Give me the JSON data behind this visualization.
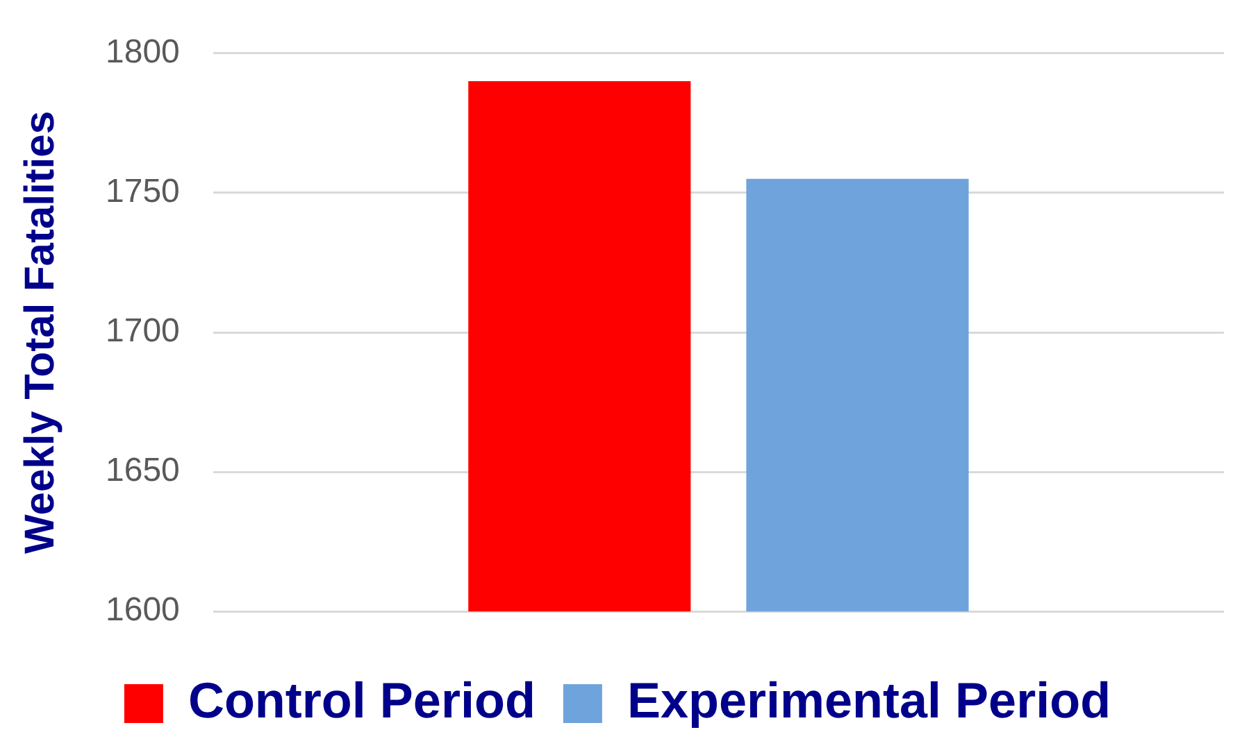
{
  "chart_data": {
    "type": "bar",
    "ylabel": "Weekly Total Fatalities",
    "categories": [
      null
    ],
    "series": [
      {
        "name": "Control Period",
        "color": "#ff0000",
        "values": [
          1790
        ]
      },
      {
        "name": "Experimental Period",
        "color": "#6fa3dc",
        "values": [
          1755
        ]
      }
    ],
    "ylim": [
      1600,
      1800
    ],
    "yticks": [
      1600,
      1650,
      1700,
      1750,
      1800
    ],
    "grid": "y",
    "legend": "bottom"
  }
}
